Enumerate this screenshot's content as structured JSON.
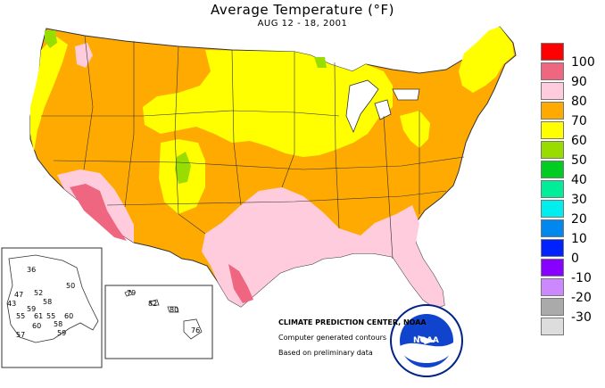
{
  "header": {
    "title": "Average Temperature (°F)",
    "subtitle": "AUG 12 - 18, 2001"
  },
  "legend": {
    "items": [
      {
        "label": "100",
        "color": "#ff0000"
      },
      {
        "label": "90",
        "color": "#ee6680"
      },
      {
        "label": "80",
        "color": "#ffccdd"
      },
      {
        "label": "70",
        "color": "#ffaa00"
      },
      {
        "label": "60",
        "color": "#ffff00"
      },
      {
        "label": "50",
        "color": "#99dd00"
      },
      {
        "label": "40",
        "color": "#00cc22"
      },
      {
        "label": "30",
        "color": "#00ee99"
      },
      {
        "label": "20",
        "color": "#00eeee"
      },
      {
        "label": "10",
        "color": "#0088ee"
      },
      {
        "label": "0",
        "color": "#0022ff"
      },
      {
        "label": "-10",
        "color": "#8800ff"
      },
      {
        "label": "-20",
        "color": "#cc88ff"
      },
      {
        "label": "-30",
        "color": "#aaaaaa"
      },
      {
        "label": "",
        "color": "#dddddd"
      }
    ]
  },
  "alaska": {
    "labels": [
      "36",
      "50",
      "47",
      "52",
      "43",
      "59",
      "58",
      "55",
      "61",
      "55",
      "60",
      "60",
      "58",
      "57",
      "59"
    ]
  },
  "hawaii": {
    "labels": [
      "79",
      "82",
      "80",
      "76"
    ]
  },
  "credits": {
    "line1": "CLIMATE PREDICTION CENTER, NOAA",
    "line2": "Computer generated contours",
    "line3": "Based on preliminary data"
  },
  "logo": {
    "text": "NOAA",
    "ring_text": "NATIONAL OCEANIC AND ATMOSPHERIC ADMINISTRATION · U.S. DEPARTMENT OF COMMERCE"
  }
}
